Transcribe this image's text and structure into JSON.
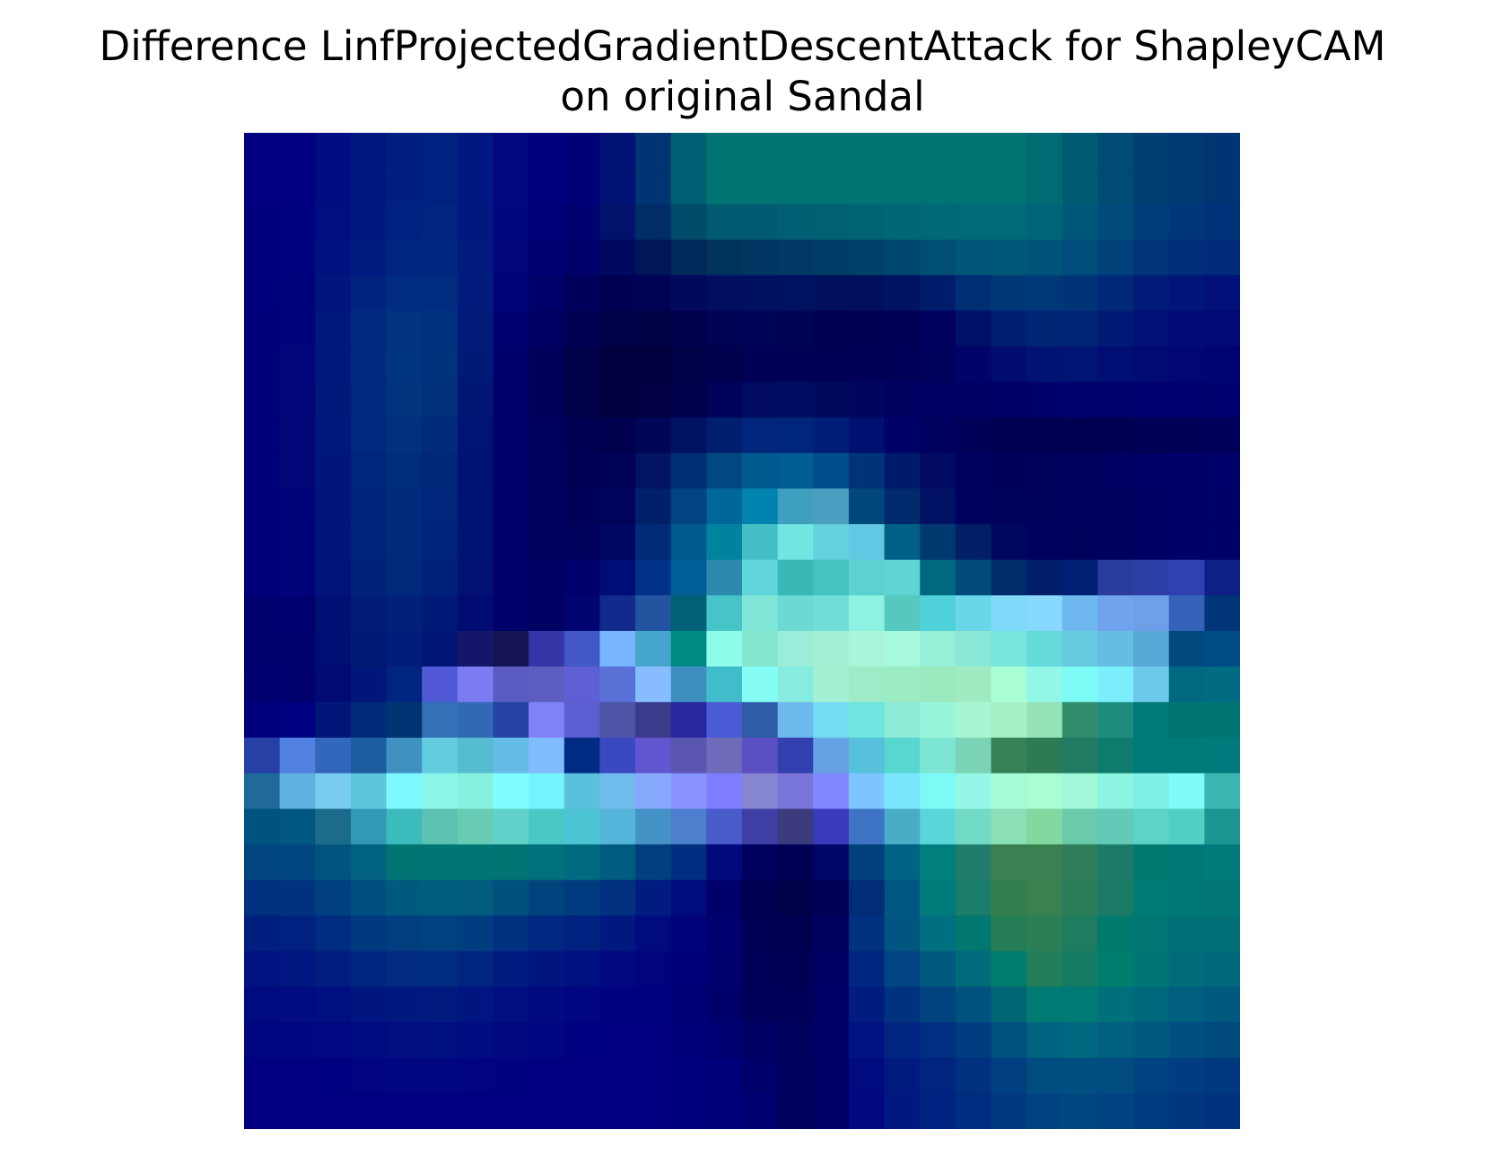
{
  "chart_data": {
    "type": "heatmap",
    "title_lines": [
      "Difference LinfProjectedGradientDescentAttack for ShapleyCAM",
      "on original Sandal"
    ],
    "xlabel": "",
    "ylabel": "",
    "axes_visible": false,
    "grid": false,
    "legend": "none",
    "rows": 28,
    "cols": 28,
    "cell_colors": [
      [
        "#000080",
        "#000080",
        "#000d80",
        "#001780",
        "#001f80",
        "#002180",
        "#001680",
        "#00077f",
        "#00007c",
        "#000077",
        "#001273",
        "#003573",
        "#005f73",
        "#007373",
        "#007373",
        "#007373",
        "#007373",
        "#007373",
        "#007373",
        "#007373",
        "#007373",
        "#007373",
        "#006b73",
        "#005a73",
        "#004b73",
        "#003f73",
        "#003a73",
        "#003573"
      ],
      [
        "#000080",
        "#000080",
        "#000d80",
        "#001780",
        "#001f80",
        "#002180",
        "#001680",
        "#00077f",
        "#00007c",
        "#000077",
        "#001273",
        "#003573",
        "#005f73",
        "#007373",
        "#007373",
        "#007373",
        "#007373",
        "#007373",
        "#007373",
        "#007373",
        "#007373",
        "#007373",
        "#006b73",
        "#005a73",
        "#004b73",
        "#003f73",
        "#003a73",
        "#003573"
      ],
      [
        "#00007f",
        "#00017f",
        "#000e80",
        "#001980",
        "#002180",
        "#002480",
        "#001880",
        "#00077d",
        "#000078",
        "#000272",
        "#00126b",
        "#002c67",
        "#004a6a",
        "#005a70",
        "#005b72",
        "#005f73",
        "#006173",
        "#006374",
        "#006675",
        "#006876",
        "#006a77",
        "#006a78",
        "#006478",
        "#005879",
        "#004b7a",
        "#003e7a",
        "#00377a",
        "#00327a"
      ],
      [
        "#00007e",
        "#00027e",
        "#00117f",
        "#001c80",
        "#002580",
        "#002780",
        "#001a7e",
        "#00067a",
        "#000073",
        "#00006a",
        "#00085f",
        "#001658",
        "#002858",
        "#00345d",
        "#003661",
        "#003a64",
        "#003d66",
        "#00416a",
        "#00476e",
        "#004e72",
        "#005676",
        "#005878",
        "#005479",
        "#004c7a",
        "#00417a",
        "#00357a",
        "#002e7a",
        "#002a7a"
      ],
      [
        "#00007c",
        "#00037c",
        "#00147e",
        "#002380",
        "#002c81",
        "#002c80",
        "#001b7c",
        "#000476",
        "#00006a",
        "#00005c",
        "#000052",
        "#000353",
        "#00095b",
        "#000e60",
        "#001061",
        "#00115f",
        "#00105c",
        "#000f5c",
        "#001363",
        "#001d6c",
        "#002e73",
        "#003777",
        "#003978",
        "#003479",
        "#002879",
        "#001c79",
        "#001578",
        "#001078"
      ],
      [
        "#00007a",
        "#00037b",
        "#00177e",
        "#00297f",
        "#003382",
        "#00317f",
        "#001c78",
        "#000170",
        "#000062",
        "#000053",
        "#000046",
        "#000045",
        "#00004c",
        "#000253",
        "#000456",
        "#000453",
        "#000150",
        "#000050",
        "#000056",
        "#000060",
        "#00106a",
        "#001e72",
        "#002575",
        "#002376",
        "#001a76",
        "#001077",
        "#000b77",
        "#000977"
      ],
      [
        "#000079",
        "#000579",
        "#00187c",
        "#002a7e",
        "#003581",
        "#00327e",
        "#001a76",
        "#00006c",
        "#00005b",
        "#000049",
        "#00003f",
        "#00003e",
        "#000046",
        "#00004e",
        "#000054",
        "#000055",
        "#000055",
        "#000056",
        "#000058",
        "#00005d",
        "#000368",
        "#000d6f",
        "#001373",
        "#001474",
        "#000e74",
        "#000a73",
        "#000673",
        "#000473"
      ],
      [
        "#000079",
        "#000578",
        "#00197b",
        "#002a7d",
        "#00347f",
        "#002f7c",
        "#001773",
        "#00006a",
        "#000058",
        "#000048",
        "#000041",
        "#000043",
        "#00004c",
        "#000158",
        "#000a5f",
        "#000c5f",
        "#000a5d",
        "#00055e",
        "#000060",
        "#000062",
        "#000064",
        "#000066",
        "#00006b",
        "#00006f",
        "#00006f",
        "#000070",
        "#000070",
        "#00006f"
      ],
      [
        "#00007a",
        "#000578",
        "#00187b",
        "#00287c",
        "#00307e",
        "#002b7b",
        "#001473",
        "#00006b",
        "#00005e",
        "#000052",
        "#00004f",
        "#000556",
        "#001262",
        "#001e6f",
        "#00257a",
        "#00267c",
        "#001e77",
        "#001070",
        "#000167",
        "#000060",
        "#000058",
        "#000052",
        "#000050",
        "#000050",
        "#000052",
        "#000055",
        "#000057",
        "#00005a"
      ],
      [
        "#00007a",
        "#000578",
        "#00167a",
        "#00267c",
        "#002e7d",
        "#00277a",
        "#001373",
        "#00006b",
        "#00005f",
        "#000057",
        "#000258",
        "#001462",
        "#002e72",
        "#00487f",
        "#005a8d",
        "#005d93",
        "#004d8b",
        "#003479",
        "#001a6b",
        "#000a63",
        "#00005e",
        "#00005c",
        "#00005d",
        "#000060",
        "#000063",
        "#000066",
        "#000068",
        "#00006a"
      ],
      [
        "#00007a",
        "#000478",
        "#00157a",
        "#00247b",
        "#002b7d",
        "#00257a",
        "#001273",
        "#00006b",
        "#000060",
        "#000059",
        "#00045b",
        "#00206a",
        "#004582",
        "#00679a",
        "#0083ae",
        "#3f9fbf",
        "#4a9ec0",
        "#00487b",
        "#002a6c",
        "#001063",
        "#00005f",
        "#00005d",
        "#00005d",
        "#00005e",
        "#000061",
        "#000064",
        "#000066",
        "#000069"
      ],
      [
        "#00007a",
        "#000478",
        "#00147a",
        "#00237b",
        "#002a7c",
        "#00247a",
        "#001273",
        "#00006b",
        "#000061",
        "#00005d",
        "#000864",
        "#002b77",
        "#005a8e",
        "#00839e",
        "#45bdc4",
        "#70e5e2",
        "#63d2dc",
        "#61c7e3",
        "#005f87",
        "#003870",
        "#001f65",
        "#000760",
        "#00005e",
        "#00005d",
        "#000060",
        "#000063",
        "#000066",
        "#000069"
      ],
      [
        "#00007b",
        "#000478",
        "#00137a",
        "#00217a",
        "#00287b",
        "#00217a",
        "#001173",
        "#00006c",
        "#000064",
        "#00006c",
        "#000c77",
        "#00328a",
        "#005e97",
        "#2b8aae",
        "#62d6dd",
        "#3ab8b7",
        "#46c2c2",
        "#5cd1d1",
        "#5dd3d3",
        "#00687f",
        "#004b78",
        "#002e6d",
        "#001e6a",
        "#002075",
        "#2a3d9c",
        "#2d3da6",
        "#3040b0",
        "#0e1f85"
      ],
      [
        "#00006f",
        "#000070",
        "#000f73",
        "#001c77",
        "#002079",
        "#001a78",
        "#000b72",
        "#00006a",
        "#000064",
        "#000470",
        "#112a8c",
        "#2254a0",
        "#006076",
        "#47c4c8",
        "#7fe6d8",
        "#6ed9d4",
        "#70ddd7",
        "#8cf3e2",
        "#56c9bf",
        "#4ed1d8",
        "#69d7e8",
        "#7fdafa",
        "#87d9ff",
        "#6eb8ef",
        "#6fa4ed",
        "#6ea0ea",
        "#3562b8",
        "#003577"
      ],
      [
        "#00006e",
        "#00006f",
        "#000d72",
        "#001a76",
        "#001d79",
        "#001676",
        "#16156a",
        "#151556",
        "#3535a8",
        "#4158c6",
        "#77b5ff",
        "#46a5cd",
        "#008a86",
        "#8ffce8",
        "#83e6cf",
        "#9aedd8",
        "#a4f0d6",
        "#a8f5d9",
        "#a7f9dd",
        "#98efd8",
        "#8ae8d6",
        "#78e7de",
        "#65dada",
        "#66cae0",
        "#64bde3",
        "#58a8d7",
        "#004a80",
        "#004c83"
      ],
      [
        "#000070",
        "#00006f",
        "#000974",
        "#00167a",
        "#002580",
        "#5159d7",
        "#7b7cf1",
        "#5a5cc4",
        "#5c5dbe",
        "#5e5fd4",
        "#5a72d8",
        "#87bcff",
        "#3c8fc0",
        "#40bccb",
        "#85fcf4",
        "#86ebe1",
        "#a4f0d3",
        "#9eebc7",
        "#9bebc3",
        "#9beabf",
        "#9feac0",
        "#a8fdd3",
        "#92f7e7",
        "#7cfbf7",
        "#7beefb",
        "#6dc9ea",
        "#006881",
        "#006b83"
      ],
      [
        "#00007e",
        "#000180",
        "#001678",
        "#002a7a",
        "#003372",
        "#3470b7",
        "#3169b7",
        "#2443a5",
        "#7f82f6",
        "#5a5ed0",
        "#4f55a6",
        "#3a3b8a",
        "#28289e",
        "#4a5bd6",
        "#2f5ca7",
        "#6db8ec",
        "#71dcf3",
        "#6ee5df",
        "#8ee9d5",
        "#98f5dc",
        "#a6f6d3",
        "#a8f0c8",
        "#97e3b8",
        "#308c6b",
        "#1d8c7e",
        "#007979",
        "#007373",
        "#007373"
      ],
      [
        "#2640a6",
        "#5080e0",
        "#3267bb",
        "#1c5da0",
        "#3f91c2",
        "#63cddf",
        "#56bdd0",
        "#63bbe6",
        "#80bbfe",
        "#002b82",
        "#3a48c1",
        "#6256d0",
        "#5b56b1",
        "#6e6cb9",
        "#5b4fc4",
        "#3340b0",
        "#67a2e5",
        "#57c1dc",
        "#58d6d0",
        "#7de5d3",
        "#7bd3b6",
        "#378058",
        "#2d7b55",
        "#227b63",
        "#0f7b6c",
        "#007b79",
        "#007979",
        "#007a7c"
      ],
      [
        "#1f6a9a",
        "#5fb1e2",
        "#77ccef",
        "#5bc6dd",
        "#7ef8ff",
        "#8cf6ea",
        "#87f1e1",
        "#80feff",
        "#75f2ff",
        "#59c1dc",
        "#70bbed",
        "#86a9fe",
        "#8893ff",
        "#7e7cff",
        "#8585d0",
        "#7a75d8",
        "#8088ff",
        "#7ec5ff",
        "#7be7ff",
        "#7dfaf6",
        "#95f8e6",
        "#a4fbd6",
        "#a8fed2",
        "#a2f9d9",
        "#8cf4e0",
        "#7ef0e6",
        "#81fbf9",
        "#3cb6b3"
      ],
      [
        "#005381",
        "#005780",
        "#1b6b8d",
        "#3298b4",
        "#3dbcbd",
        "#5bc2b1",
        "#68ccb4",
        "#60d2c9",
        "#4ac8c6",
        "#4ec5d4",
        "#54b4da",
        "#4592c7",
        "#4c7fcd",
        "#475bc9",
        "#3e3ea4",
        "#3b3b7d",
        "#383bbc",
        "#3e74c3",
        "#4bacc8",
        "#5ad6db",
        "#72dbc6",
        "#8adfb6",
        "#83d8a0",
        "#69cba9",
        "#62cab7",
        "#5dd3c8",
        "#52d0c4",
        "#1d9592"
      ],
      [
        "#004480",
        "#004680",
        "#00547f",
        "#006280",
        "#007373",
        "#007575",
        "#007575",
        "#007373",
        "#00727b",
        "#006a80",
        "#005b80",
        "#003f80",
        "#002d80",
        "#000a7b",
        "#000060",
        "#000055",
        "#000668",
        "#00407c",
        "#006383",
        "#007f7f",
        "#217d6b",
        "#3a8052",
        "#3a8051",
        "#2e7e5c",
        "#1c7b66",
        "#00796f",
        "#007878",
        "#007a7a"
      ],
      [
        "#003080",
        "#003280",
        "#00407f",
        "#004e7f",
        "#005a7d",
        "#005d7d",
        "#005b7d",
        "#00507d",
        "#00447d",
        "#003a7f",
        "#00307f",
        "#001c80",
        "#000c7e",
        "#00006b",
        "#000052",
        "#000049",
        "#000057",
        "#002c78",
        "#005781",
        "#007b7b",
        "#1a7d6a",
        "#357f4f",
        "#3a8150",
        "#2c7d5a",
        "#1b7a66",
        "#007b73",
        "#007878",
        "#007777"
      ],
      [
        "#001f7f",
        "#002180",
        "#002c80",
        "#003880",
        "#003e80",
        "#004180",
        "#003d80",
        "#003080",
        "#002880",
        "#002180",
        "#001980",
        "#000c7e",
        "#00037a",
        "#00006e",
        "#000055",
        "#000050",
        "#000060",
        "#003080",
        "#005581",
        "#006f80",
        "#00786f",
        "#257e56",
        "#2c7e55",
        "#1e7c5f",
        "#007a6c",
        "#007675",
        "#007176",
        "#007076"
      ],
      [
        "#001380",
        "#001680",
        "#001d80",
        "#002680",
        "#002b80",
        "#002c80",
        "#002580",
        "#001b80",
        "#001580",
        "#000f80",
        "#000880",
        "#00047d",
        "#000078",
        "#00006f",
        "#000058",
        "#000055",
        "#000063",
        "#002680",
        "#004582",
        "#005a7f",
        "#006b7a",
        "#007b6c",
        "#237f59",
        "#147b62",
        "#007d6d",
        "#007577",
        "#006c79",
        "#00677c"
      ],
      [
        "#000b80",
        "#000c80",
        "#000f80",
        "#001580",
        "#001880",
        "#001a80",
        "#001580",
        "#000e80",
        "#000a80",
        "#000580",
        "#000280",
        "#00017d",
        "#000077",
        "#00006d",
        "#00005b",
        "#000058",
        "#000066",
        "#001c80",
        "#003280",
        "#00437f",
        "#00527e",
        "#006575",
        "#007a73",
        "#007a74",
        "#00717a",
        "#00687c",
        "#005e7f",
        "#005a80"
      ],
      [
        "#000580",
        "#000680",
        "#000780",
        "#000b80",
        "#000e80",
        "#000f80",
        "#000d80",
        "#000880",
        "#000580",
        "#000180",
        "#000080",
        "#000080",
        "#00007b",
        "#000073",
        "#000064",
        "#00005e",
        "#000068",
        "#001380",
        "#002580",
        "#002e80",
        "#003d80",
        "#005080",
        "#006380",
        "#006780",
        "#006080",
        "#005a80",
        "#004f80",
        "#004a80"
      ],
      [
        "#000080",
        "#000080",
        "#000180",
        "#000480",
        "#000580",
        "#000580",
        "#000480",
        "#000280",
        "#000080",
        "#000080",
        "#000080",
        "#000080",
        "#00007f",
        "#00007a",
        "#00006b",
        "#00005e",
        "#000066",
        "#000b80",
        "#001b80",
        "#002480",
        "#003080",
        "#003f80",
        "#004b80",
        "#004f80",
        "#004b80",
        "#004380",
        "#003d80",
        "#003880"
      ],
      [
        "#000080",
        "#000080",
        "#000080",
        "#000080",
        "#000080",
        "#000080",
        "#000080",
        "#000080",
        "#000080",
        "#000080",
        "#000080",
        "#000080",
        "#00007f",
        "#00007b",
        "#000070",
        "#00005e",
        "#000066",
        "#000980",
        "#001880",
        "#002280",
        "#002c80",
        "#003980",
        "#004380",
        "#004780",
        "#004380",
        "#003c80",
        "#003680",
        "#003280"
      ]
    ]
  }
}
